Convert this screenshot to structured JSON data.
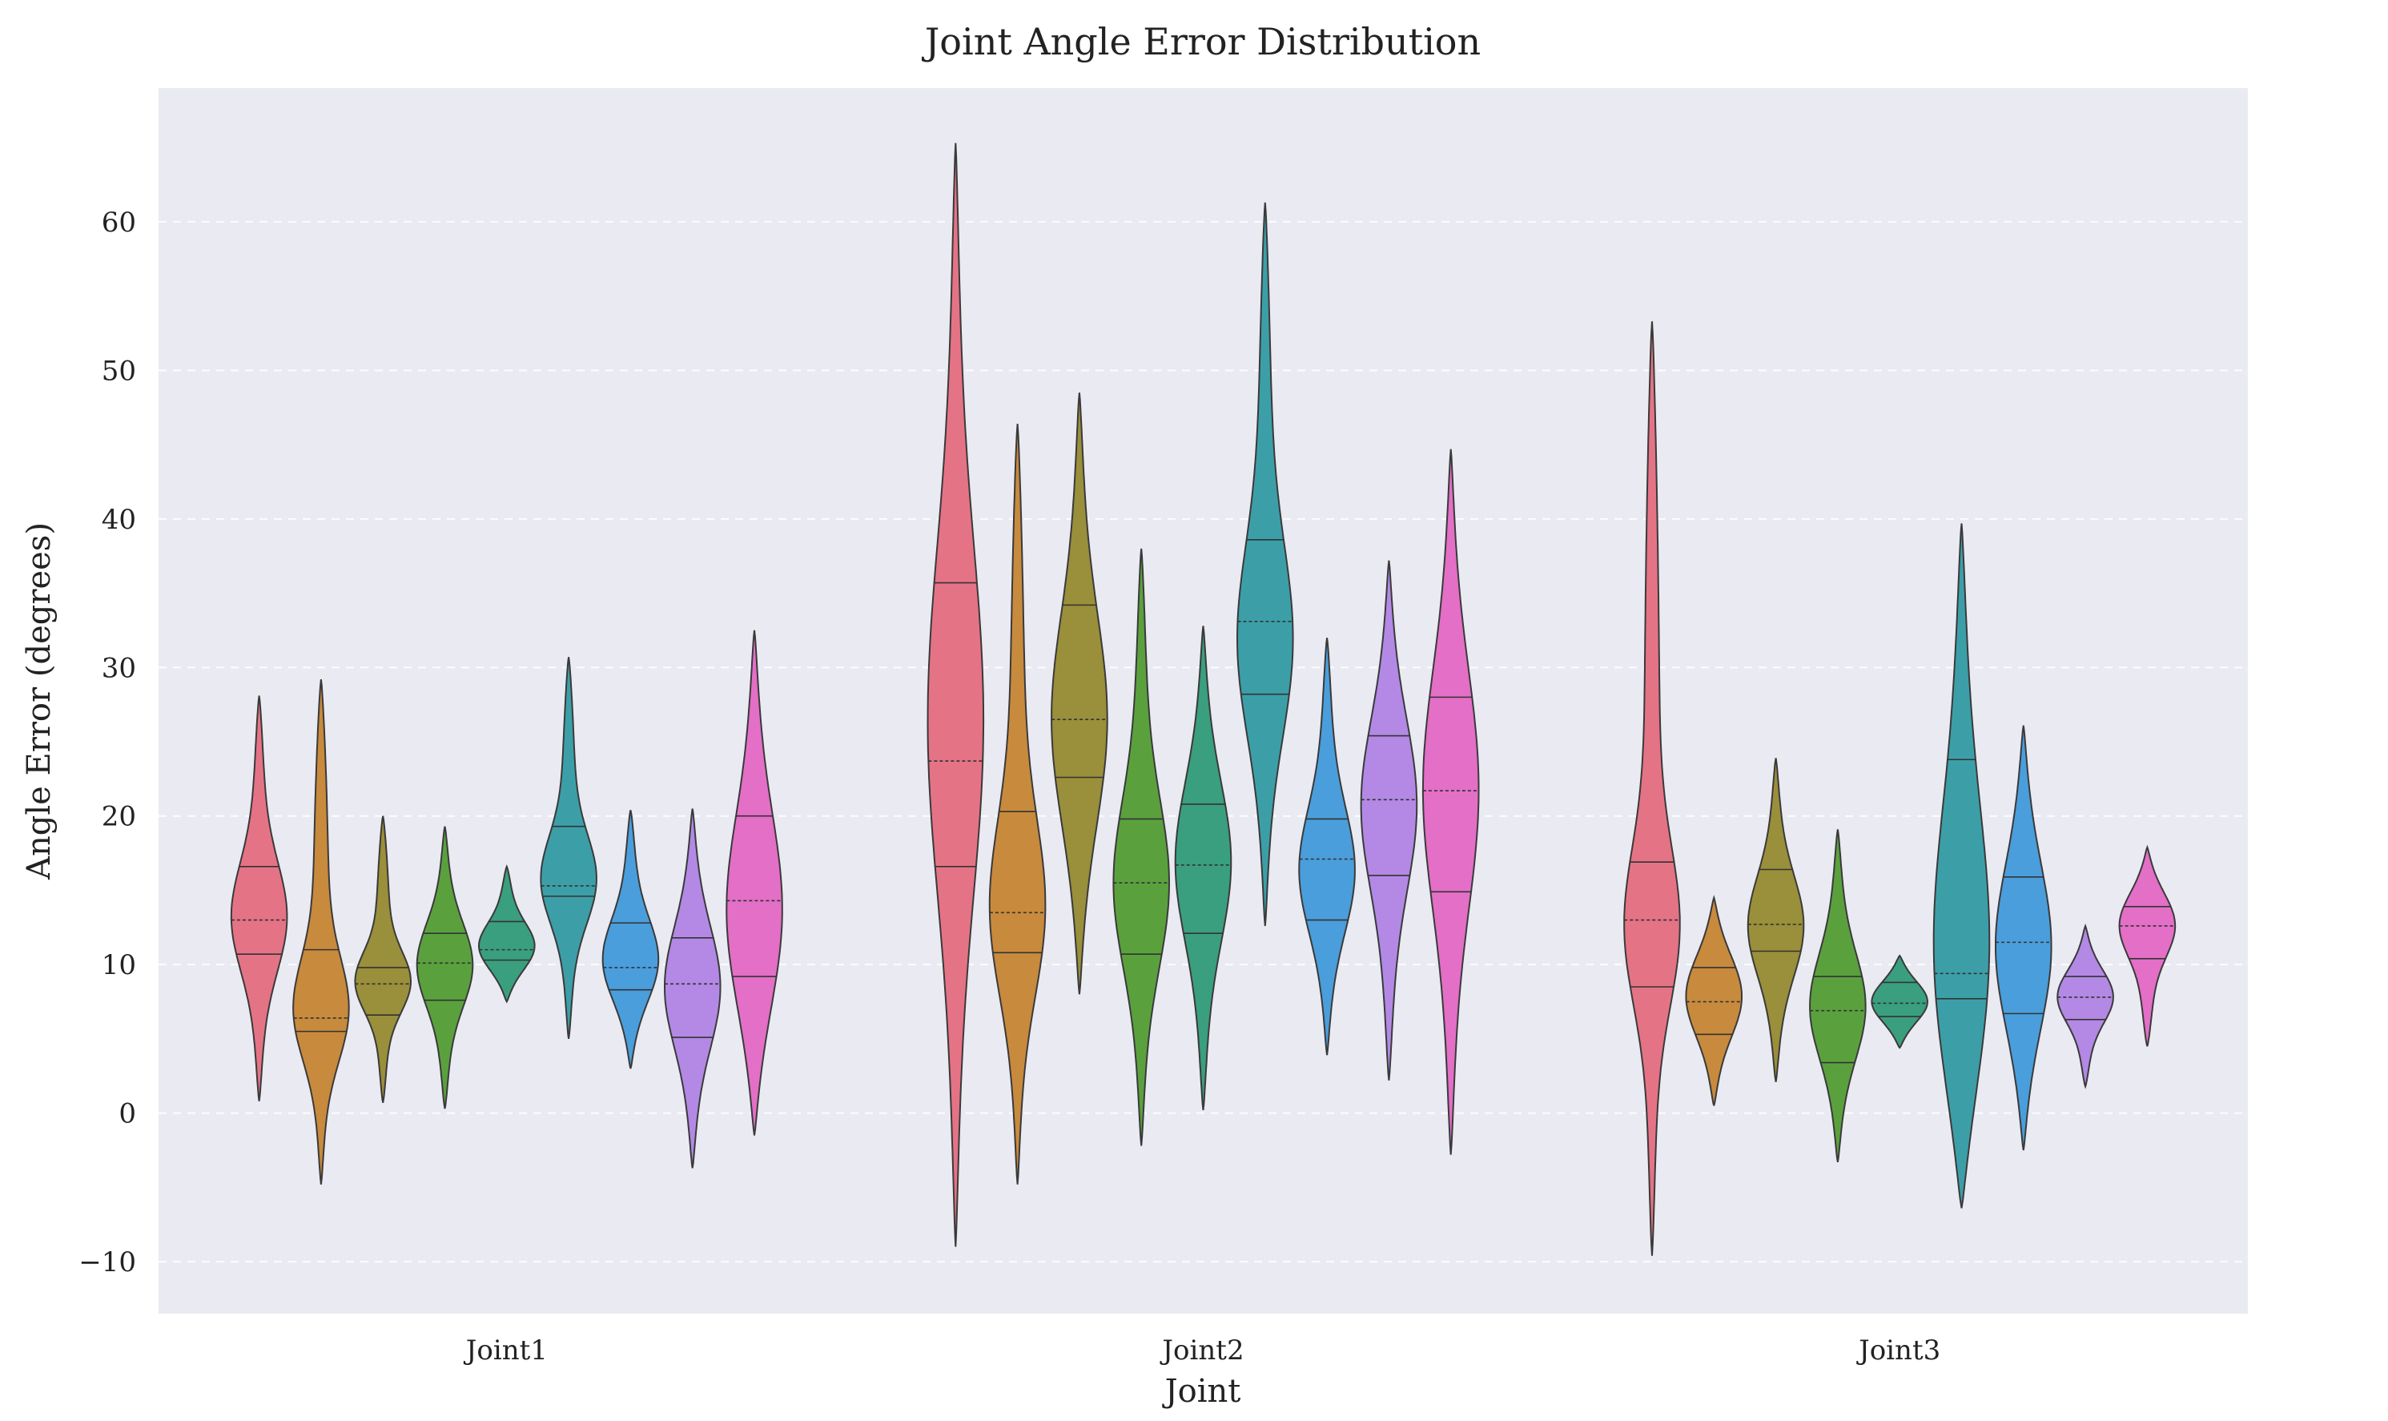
{
  "chart_data": {
    "type": "violin",
    "title": "Joint Angle Error Distribution",
    "xlabel": "Joint",
    "ylabel": "Angle Error (degrees)",
    "ylim": [
      -13.5,
      69
    ],
    "yticks": [
      -10,
      0,
      10,
      20,
      30,
      40,
      50,
      60
    ],
    "ytick_labels": [
      "−10",
      "0",
      "10",
      "20",
      "30",
      "40",
      "50",
      "60"
    ],
    "grid": true,
    "background": "#EAEAF2",
    "categories": [
      "Joint1",
      "Joint2",
      "Joint3"
    ],
    "series": [
      {
        "color": "#E57386",
        "values": [
          {
            "min": 0.8,
            "max": 28.1,
            "q1": 10.7,
            "median": 13.0,
            "q3": 16.6,
            "peak": 13.0
          },
          {
            "min": -9.0,
            "max": 65.3,
            "q1": 16.6,
            "median": 23.7,
            "q3": 35.7,
            "peak": 26.0
          },
          {
            "min": -9.6,
            "max": 53.3,
            "q1": 8.5,
            "median": 13.0,
            "q3": 16.9,
            "peak": 12.0
          }
        ]
      },
      {
        "color": "#C88A3D",
        "values": [
          {
            "min": -4.8,
            "max": 29.2,
            "q1": 5.5,
            "median": 6.4,
            "q3": 11.0,
            "peak": 6.5
          },
          {
            "min": -4.8,
            "max": 46.4,
            "q1": 10.8,
            "median": 13.5,
            "q3": 20.3,
            "peak": 13.0
          },
          {
            "min": 0.5,
            "max": 14.5,
            "q1": 5.3,
            "median": 7.5,
            "q3": 9.8,
            "peak": 8.0
          }
        ]
      },
      {
        "color": "#9A8F3A",
        "values": [
          {
            "min": 0.7,
            "max": 20.0,
            "q1": 6.6,
            "median": 8.7,
            "q3": 9.8,
            "peak": 8.7
          },
          {
            "min": 8.0,
            "max": 48.5,
            "q1": 22.6,
            "median": 26.5,
            "q3": 34.2,
            "peak": 26.0
          },
          {
            "min": 2.1,
            "max": 23.9,
            "q1": 10.9,
            "median": 12.7,
            "q3": 16.4,
            "peak": 12.5
          }
        ]
      },
      {
        "color": "#5AA13E",
        "values": [
          {
            "min": 0.3,
            "max": 19.3,
            "q1": 7.6,
            "median": 10.1,
            "q3": 12.1,
            "peak": 10.0
          },
          {
            "min": -2.2,
            "max": 38.0,
            "q1": 10.7,
            "median": 15.5,
            "q3": 19.8,
            "peak": 15.0
          },
          {
            "min": -3.3,
            "max": 19.1,
            "q1": 3.4,
            "median": 6.9,
            "q3": 9.2,
            "peak": 7.0
          }
        ]
      },
      {
        "color": "#3A9F7E",
        "values": [
          {
            "min": 7.5,
            "max": 16.6,
            "q1": 10.3,
            "median": 11.0,
            "q3": 12.9,
            "peak": 11.0
          },
          {
            "min": 0.2,
            "max": 32.8,
            "q1": 12.1,
            "median": 16.7,
            "q3": 20.8,
            "peak": 17.0
          },
          {
            "min": 4.4,
            "max": 10.6,
            "q1": 6.5,
            "median": 7.4,
            "q3": 8.8,
            "peak": 7.5
          }
        ]
      },
      {
        "color": "#3C9FA8",
        "values": [
          {
            "min": 5.0,
            "max": 30.7,
            "q1": 14.6,
            "median": 15.3,
            "q3": 19.3,
            "peak": 15.5
          },
          {
            "min": 12.6,
            "max": 61.3,
            "q1": 28.2,
            "median": 33.1,
            "q3": 38.6,
            "peak": 31.0
          },
          {
            "min": -6.4,
            "max": 39.7,
            "q1": 7.7,
            "median": 9.4,
            "q3": 23.8,
            "peak": 9.0
          }
        ]
      },
      {
        "color": "#4A9EDB",
        "values": [
          {
            "min": 3.0,
            "max": 20.4,
            "q1": 8.3,
            "median": 9.8,
            "q3": 12.8,
            "peak": 10.0
          },
          {
            "min": 3.9,
            "max": 32.0,
            "q1": 13.0,
            "median": 17.1,
            "q3": 19.8,
            "peak": 16.0
          },
          {
            "min": -2.5,
            "max": 26.1,
            "q1": 6.7,
            "median": 11.5,
            "q3": 15.9,
            "peak": 11.0
          }
        ]
      },
      {
        "color": "#B389E5",
        "values": [
          {
            "min": -3.7,
            "max": 20.5,
            "q1": 5.1,
            "median": 8.7,
            "q3": 11.8,
            "peak": 8.5
          },
          {
            "min": 2.2,
            "max": 37.2,
            "q1": 16.0,
            "median": 21.1,
            "q3": 25.4,
            "peak": 21.0
          },
          {
            "min": 1.8,
            "max": 12.6,
            "q1": 6.3,
            "median": 7.8,
            "q3": 9.2,
            "peak": 8.0
          }
        ]
      },
      {
        "color": "#E36FC7",
        "values": [
          {
            "min": -1.5,
            "max": 32.5,
            "q1": 9.2,
            "median": 14.3,
            "q3": 20.0,
            "peak": 13.0
          },
          {
            "min": -2.8,
            "max": 44.7,
            "q1": 14.9,
            "median": 21.7,
            "q3": 28.0,
            "peak": 22.0
          },
          {
            "min": 4.5,
            "max": 17.9,
            "q1": 10.4,
            "median": 12.6,
            "q3": 13.9,
            "peak": 13.0
          }
        ]
      }
    ]
  }
}
